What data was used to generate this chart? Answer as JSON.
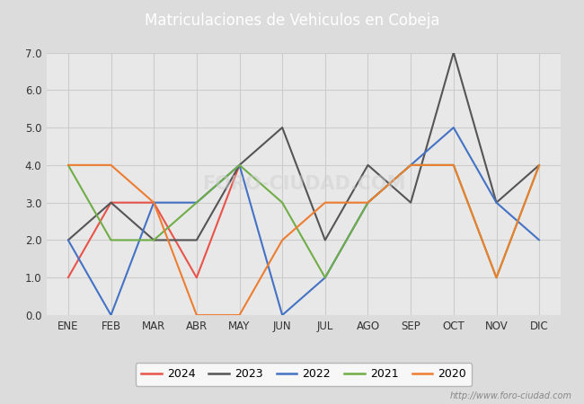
{
  "title": "Matriculaciones de Vehiculos en Cobeja",
  "header_bg": "#5b7fc4",
  "months": [
    "ENE",
    "FEB",
    "MAR",
    "ABR",
    "MAY",
    "JUN",
    "JUL",
    "AGO",
    "SEP",
    "OCT",
    "NOV",
    "DIC"
  ],
  "series": {
    "2024": {
      "values": [
        1,
        3,
        3,
        1,
        4,
        null,
        null,
        null,
        null,
        null,
        null,
        null
      ],
      "color": "#e8534a"
    },
    "2023": {
      "values": [
        2,
        3,
        2,
        2,
        4,
        5,
        2,
        4,
        3,
        7,
        3,
        4
      ],
      "color": "#555555"
    },
    "2022": {
      "values": [
        2,
        0,
        3,
        3,
        4,
        0,
        1,
        3,
        4,
        5,
        3,
        2
      ],
      "color": "#4472c4"
    },
    "2021": {
      "values": [
        4,
        2,
        2,
        3,
        4,
        3,
        1,
        3,
        4,
        4,
        1,
        4
      ],
      "color": "#70ad47"
    },
    "2020": {
      "values": [
        4,
        4,
        3,
        0,
        0,
        2,
        3,
        3,
        4,
        4,
        1,
        4
      ],
      "color": "#ed7d31"
    }
  },
  "ylim": [
    0.0,
    7.0
  ],
  "yticks": [
    0.0,
    1.0,
    2.0,
    3.0,
    4.0,
    5.0,
    6.0,
    7.0
  ],
  "grid_color": "#cccccc",
  "plot_bg": "#e8e8e8",
  "fig_bg": "#dcdcdc",
  "watermark": "http://www.foro-ciudad.com",
  "legend_order": [
    "2024",
    "2023",
    "2022",
    "2021",
    "2020"
  ]
}
